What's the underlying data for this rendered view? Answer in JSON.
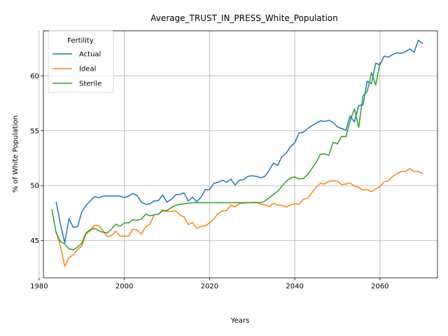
{
  "chart_data": {
    "type": "line",
    "title": "Average_TRUST_IN_PRESS_White_Population",
    "xlabel": "Years",
    "ylabel": "% of White Population",
    "xlim": [
      1981,
      2073.5
    ],
    "ylim": [
      41.6,
      64.1
    ],
    "xticks": [
      1980,
      2000,
      2020,
      2040,
      2060
    ],
    "yticks": [
      45,
      50,
      55,
      60
    ],
    "grid": true,
    "legend": {
      "title": "Fertility",
      "placement": "top-left"
    },
    "series": [
      {
        "name": "Actual",
        "color": "#1f77b4",
        "x": [
          1984,
          1985,
          1986,
          1987,
          1988,
          1989,
          1990,
          1991,
          1992,
          1993,
          1994,
          1995,
          1996,
          1997,
          1998,
          1999,
          2000,
          2001,
          2002,
          2003,
          2004,
          2005,
          2006,
          2007,
          2008,
          2009,
          2010,
          2011,
          2012,
          2013,
          2014,
          2015,
          2016,
          2017,
          2018,
          2019,
          2020,
          2021,
          2022,
          2023,
          2024,
          2025,
          2026,
          2027,
          2028,
          2029,
          2030,
          2031,
          2032,
          2033,
          2034,
          2035,
          2036,
          2037,
          2038,
          2039,
          2040,
          2041,
          2042,
          2043,
          2044,
          2045,
          2046,
          2047,
          2048,
          2049,
          2050,
          2051,
          2052,
          2053,
          2054,
          2055,
          2056,
          2057,
          2058,
          2059,
          2060,
          2061,
          2062,
          2063,
          2064,
          2065,
          2066,
          2067,
          2068,
          2069,
          2070
        ],
        "y": [
          48.5,
          46.5,
          44.8,
          47.0,
          46.2,
          46.25,
          47.6,
          48.2,
          48.6,
          49.0,
          48.9,
          49.05,
          49.05,
          49.05,
          49.05,
          49.05,
          48.9,
          49.05,
          49.3,
          49.1,
          48.5,
          48.3,
          48.35,
          48.6,
          48.65,
          49.15,
          48.5,
          48.75,
          49.15,
          49.2,
          49.35,
          48.6,
          48.95,
          48.55,
          48.95,
          49.65,
          49.65,
          50.2,
          50.3,
          50.5,
          50.3,
          50.6,
          50.05,
          50.5,
          50.55,
          50.85,
          50.9,
          50.85,
          50.7,
          50.85,
          51.4,
          52.05,
          51.85,
          52.65,
          52.95,
          53.55,
          53.9,
          54.8,
          54.85,
          55.2,
          55.45,
          55.7,
          55.9,
          55.85,
          55.95,
          55.75,
          55.35,
          55.2,
          55.05,
          56.35,
          55.8,
          57.3,
          57.35,
          59.5,
          59.3,
          61.15,
          61.0,
          61.8,
          61.7,
          61.95,
          62.1,
          62.05,
          62.2,
          62.45,
          62.15,
          63.25,
          62.95
        ]
      },
      {
        "name": "Ideal",
        "color": "#ff7f0e",
        "x": [
          1984,
          1985,
          1986,
          1987,
          1988,
          1989,
          1990,
          1991,
          1992,
          1993,
          1994,
          1995,
          1996,
          1997,
          1998,
          1999,
          2000,
          2001,
          2002,
          2003,
          2004,
          2005,
          2006,
          2007,
          2008,
          2009,
          2010,
          2011,
          2012,
          2013,
          2014,
          2015,
          2016,
          2017,
          2018,
          2019,
          2020,
          2021,
          2022,
          2023,
          2024,
          2025,
          2026,
          2027,
          2028,
          2029,
          2030,
          2031,
          2032,
          2033,
          2034,
          2035,
          2036,
          2037,
          2038,
          2039,
          2040,
          2041,
          2042,
          2043,
          2044,
          2045,
          2046,
          2047,
          2048,
          2049,
          2050,
          2051,
          2052,
          2053,
          2054,
          2055,
          2056,
          2057,
          2058,
          2059,
          2060,
          2061,
          2062,
          2063,
          2064,
          2065,
          2066,
          2067,
          2068,
          2069,
          2070
        ],
        "y": [
          45.8,
          44.5,
          42.65,
          43.45,
          43.7,
          44.15,
          44.5,
          45.6,
          45.9,
          46.4,
          46.35,
          45.9,
          45.35,
          45.45,
          45.85,
          45.4,
          45.4,
          45.4,
          46.05,
          45.95,
          45.6,
          46.25,
          46.5,
          47.35,
          47.4,
          47.8,
          47.65,
          47.65,
          47.7,
          47.35,
          47.15,
          46.45,
          46.65,
          46.1,
          46.3,
          46.35,
          46.6,
          46.95,
          47.45,
          47.7,
          47.75,
          48.25,
          48.05,
          48.4,
          48.4,
          48.45,
          48.45,
          48.5,
          48.3,
          48.25,
          48.1,
          48.4,
          48.25,
          48.2,
          48.05,
          48.25,
          48.35,
          48.3,
          48.75,
          48.85,
          49.35,
          49.85,
          50.2,
          50.15,
          50.4,
          50.45,
          50.4,
          50.1,
          50.15,
          50.25,
          49.95,
          49.85,
          49.6,
          49.65,
          49.45,
          49.7,
          49.9,
          50.35,
          50.45,
          50.85,
          51.1,
          51.3,
          51.3,
          51.55,
          51.3,
          51.3,
          51.1
        ]
      },
      {
        "name": "Sterile",
        "color": "#2ca02c",
        "x": [
          1983,
          1984,
          1985,
          1986,
          1987,
          1988,
          1989,
          1990,
          1991,
          1992,
          1993,
          1994,
          1995,
          1996,
          1997,
          1998,
          1999,
          2000,
          2001,
          2002,
          2003,
          2004,
          2005,
          2006,
          2007,
          2008,
          2009,
          2010,
          2011,
          2012,
          2013,
          2014,
          2015,
          2016,
          2017,
          2018,
          2019,
          2020,
          2021,
          2022,
          2023,
          2024,
          2025,
          2026,
          2027,
          2028,
          2029,
          2030,
          2031,
          2032,
          2033,
          2034,
          2035,
          2036,
          2037,
          2038,
          2039,
          2040,
          2041,
          2042,
          2043,
          2044,
          2045,
          2046,
          2047,
          2048,
          2049,
          2050,
          2051,
          2052,
          2053,
          2054,
          2055,
          2056,
          2057,
          2058,
          2059,
          2060
        ],
        "y": [
          47.8,
          45.7,
          44.9,
          44.7,
          44.25,
          44.15,
          44.4,
          44.75,
          45.7,
          46.0,
          46.1,
          45.9,
          45.75,
          45.7,
          46.05,
          46.5,
          46.3,
          46.6,
          46.6,
          46.9,
          46.85,
          46.95,
          47.4,
          47.25,
          47.35,
          47.4,
          47.7,
          47.75,
          48.0,
          48.2,
          48.3,
          48.35,
          48.4,
          48.45,
          48.45,
          48.45,
          48.45,
          48.45,
          48.45,
          48.45,
          48.45,
          48.45,
          48.45,
          48.45,
          48.45,
          48.45,
          48.45,
          48.45,
          48.45,
          48.45,
          48.6,
          48.9,
          49.2,
          49.5,
          49.95,
          50.4,
          50.7,
          50.8,
          50.6,
          50.65,
          51.0,
          51.55,
          52.1,
          52.85,
          52.9,
          52.75,
          53.95,
          53.8,
          54.5,
          54.45,
          55.9,
          57.0,
          55.3,
          58.2,
          58.55,
          60.3,
          59.15,
          61.2
        ]
      }
    ]
  }
}
